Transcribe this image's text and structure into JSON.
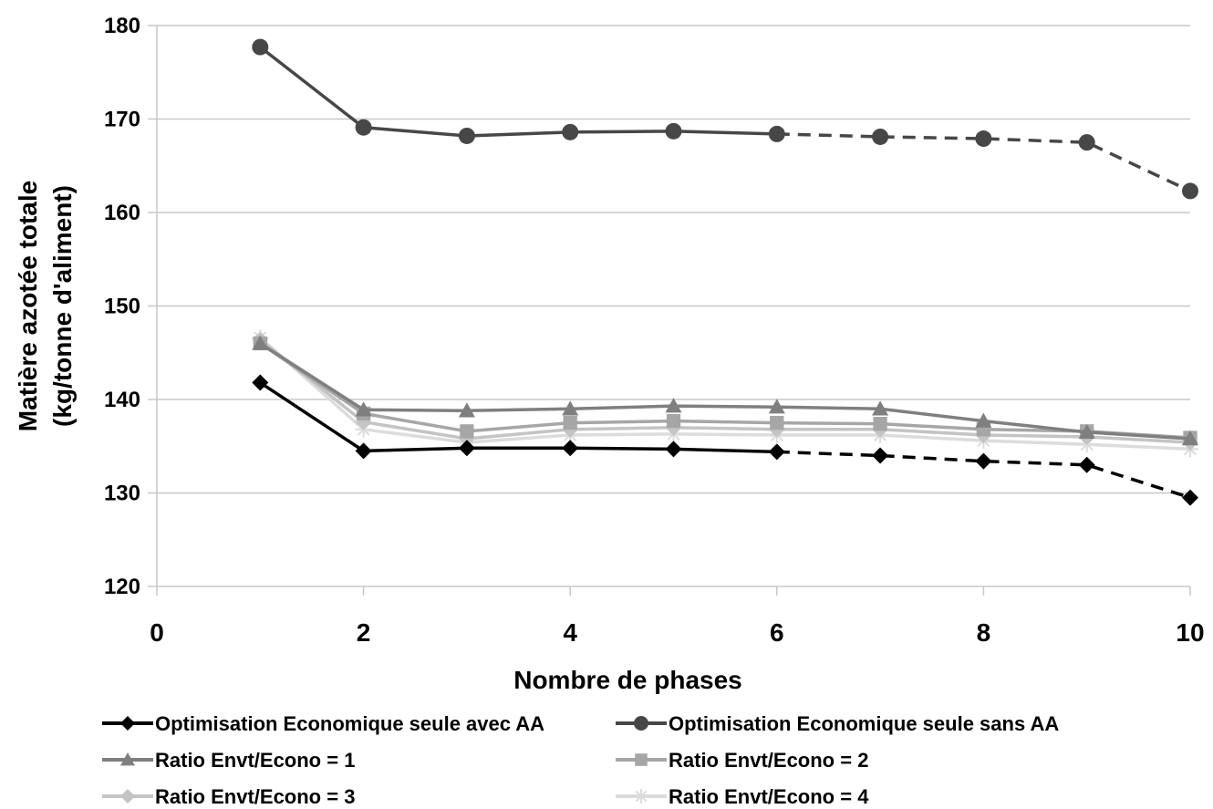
{
  "chart_data": {
    "type": "line",
    "title": "",
    "xlabel": "Nombre de phases",
    "ylabel_lines": [
      "Matière azotée totale",
      "(kg/tonne d'aliment)"
    ],
    "xlim": [
      0,
      10
    ],
    "ylim": [
      120,
      180
    ],
    "xticks": [
      0,
      2,
      4,
      6,
      8,
      10
    ],
    "yticks": [
      120,
      130,
      140,
      150,
      160,
      170,
      180
    ],
    "grid": "horizontal",
    "legend_position": "bottom",
    "x": [
      1,
      2,
      3,
      4,
      5,
      6,
      7,
      8,
      9,
      10
    ],
    "series": [
      {
        "name": "Optimisation Economique seule avec AA",
        "values": [
          141.8,
          134.5,
          134.8,
          134.8,
          134.7,
          134.4,
          134.0,
          133.4,
          133.0,
          129.5
        ],
        "color": "#000000",
        "marker": "diamond",
        "dashed_from_x": 6
      },
      {
        "name": "Optimisation Economique seule sans AA",
        "values": [
          177.7,
          169.1,
          168.2,
          168.6,
          168.7,
          168.4,
          168.1,
          167.9,
          167.5,
          162.3
        ],
        "color": "#474747",
        "marker": "circle",
        "dashed_from_x": 6
      },
      {
        "name": "Ratio Envt/Econo = 1",
        "values": [
          146.0,
          138.9,
          138.8,
          139.0,
          139.3,
          139.2,
          139.0,
          137.7,
          136.5,
          135.8
        ],
        "color": "#7f7f7f",
        "marker": "triangle"
      },
      {
        "name": "Ratio Envt/Econo = 2",
        "values": [
          146.0,
          138.5,
          136.6,
          137.5,
          137.7,
          137.5,
          137.4,
          136.8,
          136.6,
          135.9
        ],
        "color": "#a6a6a6",
        "marker": "square"
      },
      {
        "name": "Ratio Envt/Econo = 3",
        "values": [
          146.4,
          137.6,
          135.8,
          136.8,
          137.0,
          136.8,
          136.8,
          136.2,
          136.0,
          135.4
        ],
        "color": "#c4c4c4",
        "marker": "diamond"
      },
      {
        "name": "Ratio Envt/Econo = 4",
        "values": [
          146.6,
          136.8,
          135.4,
          136.2,
          136.3,
          136.2,
          136.2,
          135.6,
          135.2,
          134.7
        ],
        "color": "#dcdcdc",
        "marker": "asterisk"
      }
    ]
  }
}
